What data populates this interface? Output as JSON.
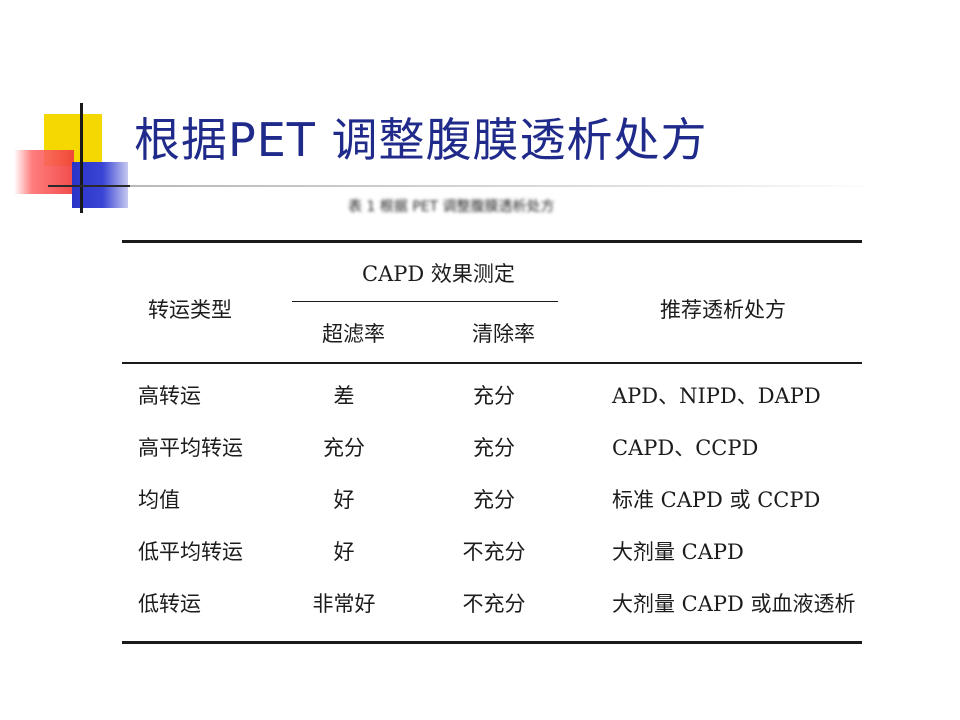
{
  "slide": {
    "title": "根据PET 调整腹膜透析处方",
    "caption": "表 1 根据 PET 调整腹膜透析处方"
  },
  "table": {
    "headers": {
      "type": "转运类型",
      "capd_group": "CAPD 效果测定",
      "uf": "超滤率",
      "clearance": "清除率",
      "rx": "推荐透析处方"
    },
    "rows": [
      {
        "type": "高转运",
        "uf": "差",
        "clearance": "充分",
        "rx": "APD、NIPD、DAPD"
      },
      {
        "type": "高平均转运",
        "uf": "充分",
        "clearance": "充分",
        "rx": "CAPD、CCPD"
      },
      {
        "type": "均值",
        "uf": "好",
        "clearance": "充分",
        "rx": "标准 CAPD 或 CCPD"
      },
      {
        "type": "低平均转运",
        "uf": "好",
        "clearance": "不充分",
        "rx": "大剂量 CAPD"
      },
      {
        "type": "低转运",
        "uf": "非常好",
        "clearance": "不充分",
        "rx": "大剂量 CAPD 或血液透析"
      }
    ]
  }
}
